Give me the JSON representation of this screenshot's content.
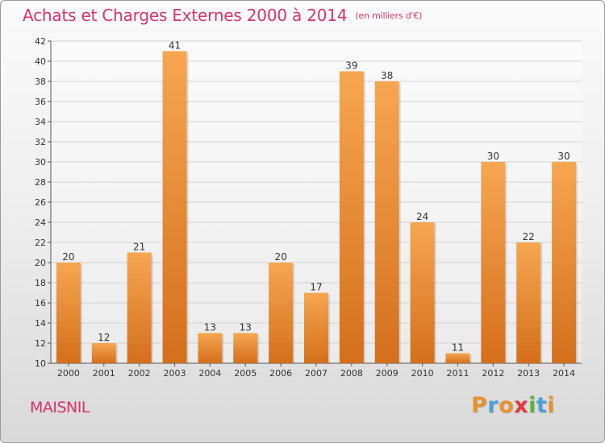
{
  "chart_data": {
    "type": "bar",
    "title": "Achats et Charges Externes 2000 à 2014",
    "unit_label": "(en milliers d'€)",
    "xlabel": "",
    "ylabel": "",
    "categories": [
      "2000",
      "2001",
      "2002",
      "2003",
      "2004",
      "2005",
      "2006",
      "2007",
      "2008",
      "2009",
      "2010",
      "2011",
      "2012",
      "2013",
      "2014"
    ],
    "values": [
      20,
      12,
      21,
      41,
      13,
      13,
      20,
      17,
      39,
      38,
      24,
      11,
      30,
      22,
      30
    ],
    "ylim": [
      10,
      42
    ],
    "yticks": [
      10,
      12,
      14,
      16,
      18,
      20,
      22,
      24,
      26,
      28,
      30,
      32,
      34,
      36,
      38,
      40,
      42
    ],
    "grid": true,
    "legend": "none",
    "bar_color_light": "#f7a650",
    "bar_color_dark": "#d46f1c"
  },
  "footer": {
    "commune": "MAISNIL",
    "brand": [
      "P",
      "r",
      "o",
      "x",
      "i",
      "t",
      "i"
    ],
    "brand_colors": [
      "#e8912f",
      "#4aa0d8",
      "#e8912f",
      "#e23a3a",
      "#5bb53a",
      "#4aa0d8",
      "#e8912f"
    ]
  },
  "colors": {
    "accent": "#d6336c"
  }
}
